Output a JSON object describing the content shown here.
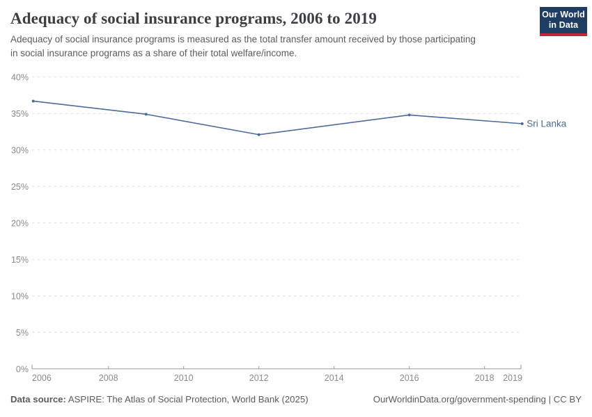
{
  "header": {
    "title": "Adequacy of social insurance programs, 2006 to 2019",
    "subtitle": "Adequacy of social insurance programs is measured as the total transfer amount received by those participating in social insurance programs as a share of their total welfare/income.",
    "logo": {
      "line1": "Our World",
      "line2": "in Data"
    }
  },
  "chart_data": {
    "type": "line",
    "title": "Adequacy of social insurance programs, 2006 to 2019",
    "x": [
      2006,
      2009,
      2012,
      2016,
      2019
    ],
    "series": [
      {
        "name": "Sri Lanka",
        "color": "#4C6A9C",
        "values": [
          36.7,
          34.9,
          32.1,
          34.8,
          33.6
        ]
      }
    ],
    "xlim": [
      2006,
      2019
    ],
    "ylim": [
      0,
      40
    ],
    "y_ticks": [
      0,
      5,
      10,
      15,
      20,
      25,
      30,
      35,
      40
    ],
    "y_tick_suffix": "%",
    "x_ticks": [
      2006,
      2008,
      2010,
      2012,
      2014,
      2016,
      2018,
      2019
    ],
    "grid": "horizontal-dashed",
    "legend_position": "line-end-label"
  },
  "footer": {
    "datasource_label": "Data source:",
    "datasource_value": " ASPIRE: The Atlas of Social Protection, World Bank (2025)",
    "attribution": "OurWorldinData.org/government-spending | CC BY"
  },
  "colors": {
    "line": "#4C6A9C",
    "grid": "#dddddd",
    "axis": "#9a9a9a",
    "tick_label": "#878b8f",
    "title": "#3b3e42",
    "text": "#5b5b5b",
    "logo_bg": "#1d3d63",
    "logo_stripe": "#c0273c"
  }
}
